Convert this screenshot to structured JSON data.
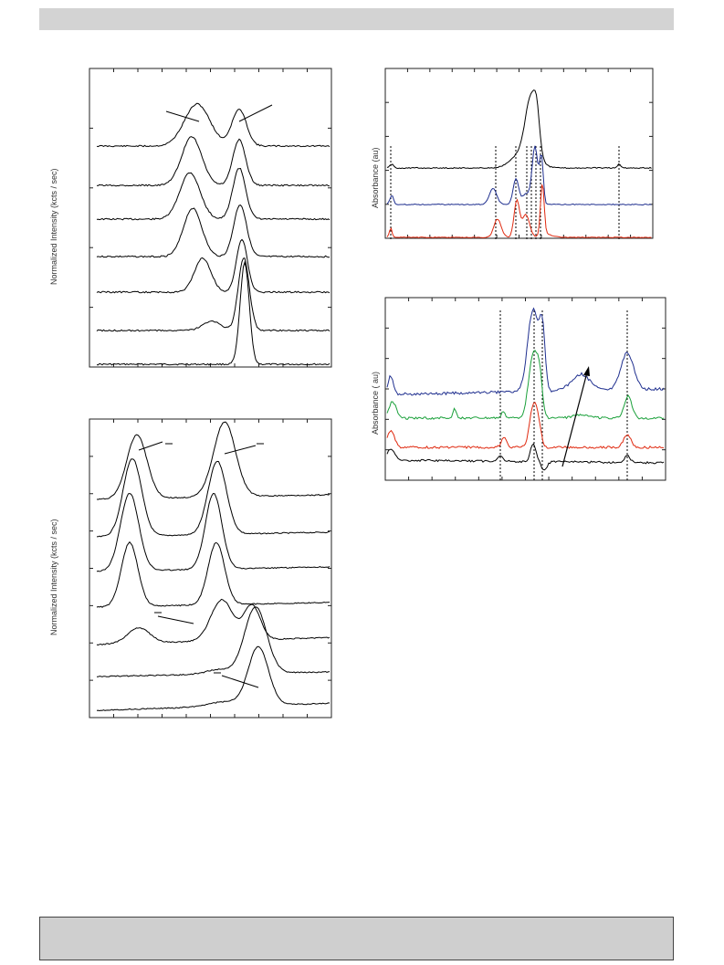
{
  "chart_data": [
    {
      "type": "line",
      "ylabel": "Normalized Intensity (kcts / sec)",
      "series_count": 7,
      "grid": false
    },
    {
      "type": "line",
      "ylabel": "Normalized Intensity (kcts / sec)",
      "series_count": 7,
      "grid": false
    },
    {
      "type": "line",
      "ylabel": "Absorbance (au)",
      "series_count": 3,
      "colors": [
        "#000000",
        "#1f2f8f",
        "#e02a10"
      ],
      "grid": false
    },
    {
      "type": "line",
      "ylabel": "Absorbance ( au)",
      "series_count": 4,
      "colors": [
        "#1f2f8f",
        "#1aa03a",
        "#e02a10",
        "#000000"
      ],
      "grid": false
    }
  ]
}
